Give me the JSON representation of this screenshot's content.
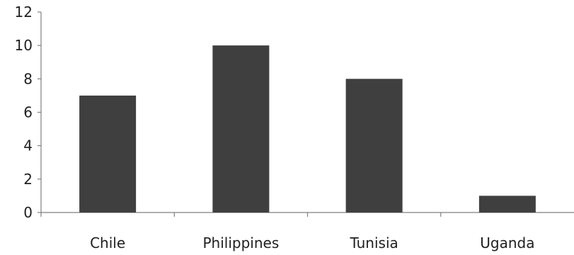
{
  "chart_data": {
    "type": "bar",
    "categories": [
      "Chile",
      "Philippines",
      "Tunisia",
      "Uganda"
    ],
    "values": [
      7,
      10,
      8,
      1
    ],
    "yticks": [
      0,
      2,
      4,
      6,
      8,
      10,
      12
    ],
    "ylim": [
      0,
      12
    ],
    "title": "",
    "xlabel": "",
    "ylabel": "",
    "grid": false,
    "legend": "none",
    "bar_color": "#3f3f3f",
    "axis_color": "#7f7f7f"
  }
}
